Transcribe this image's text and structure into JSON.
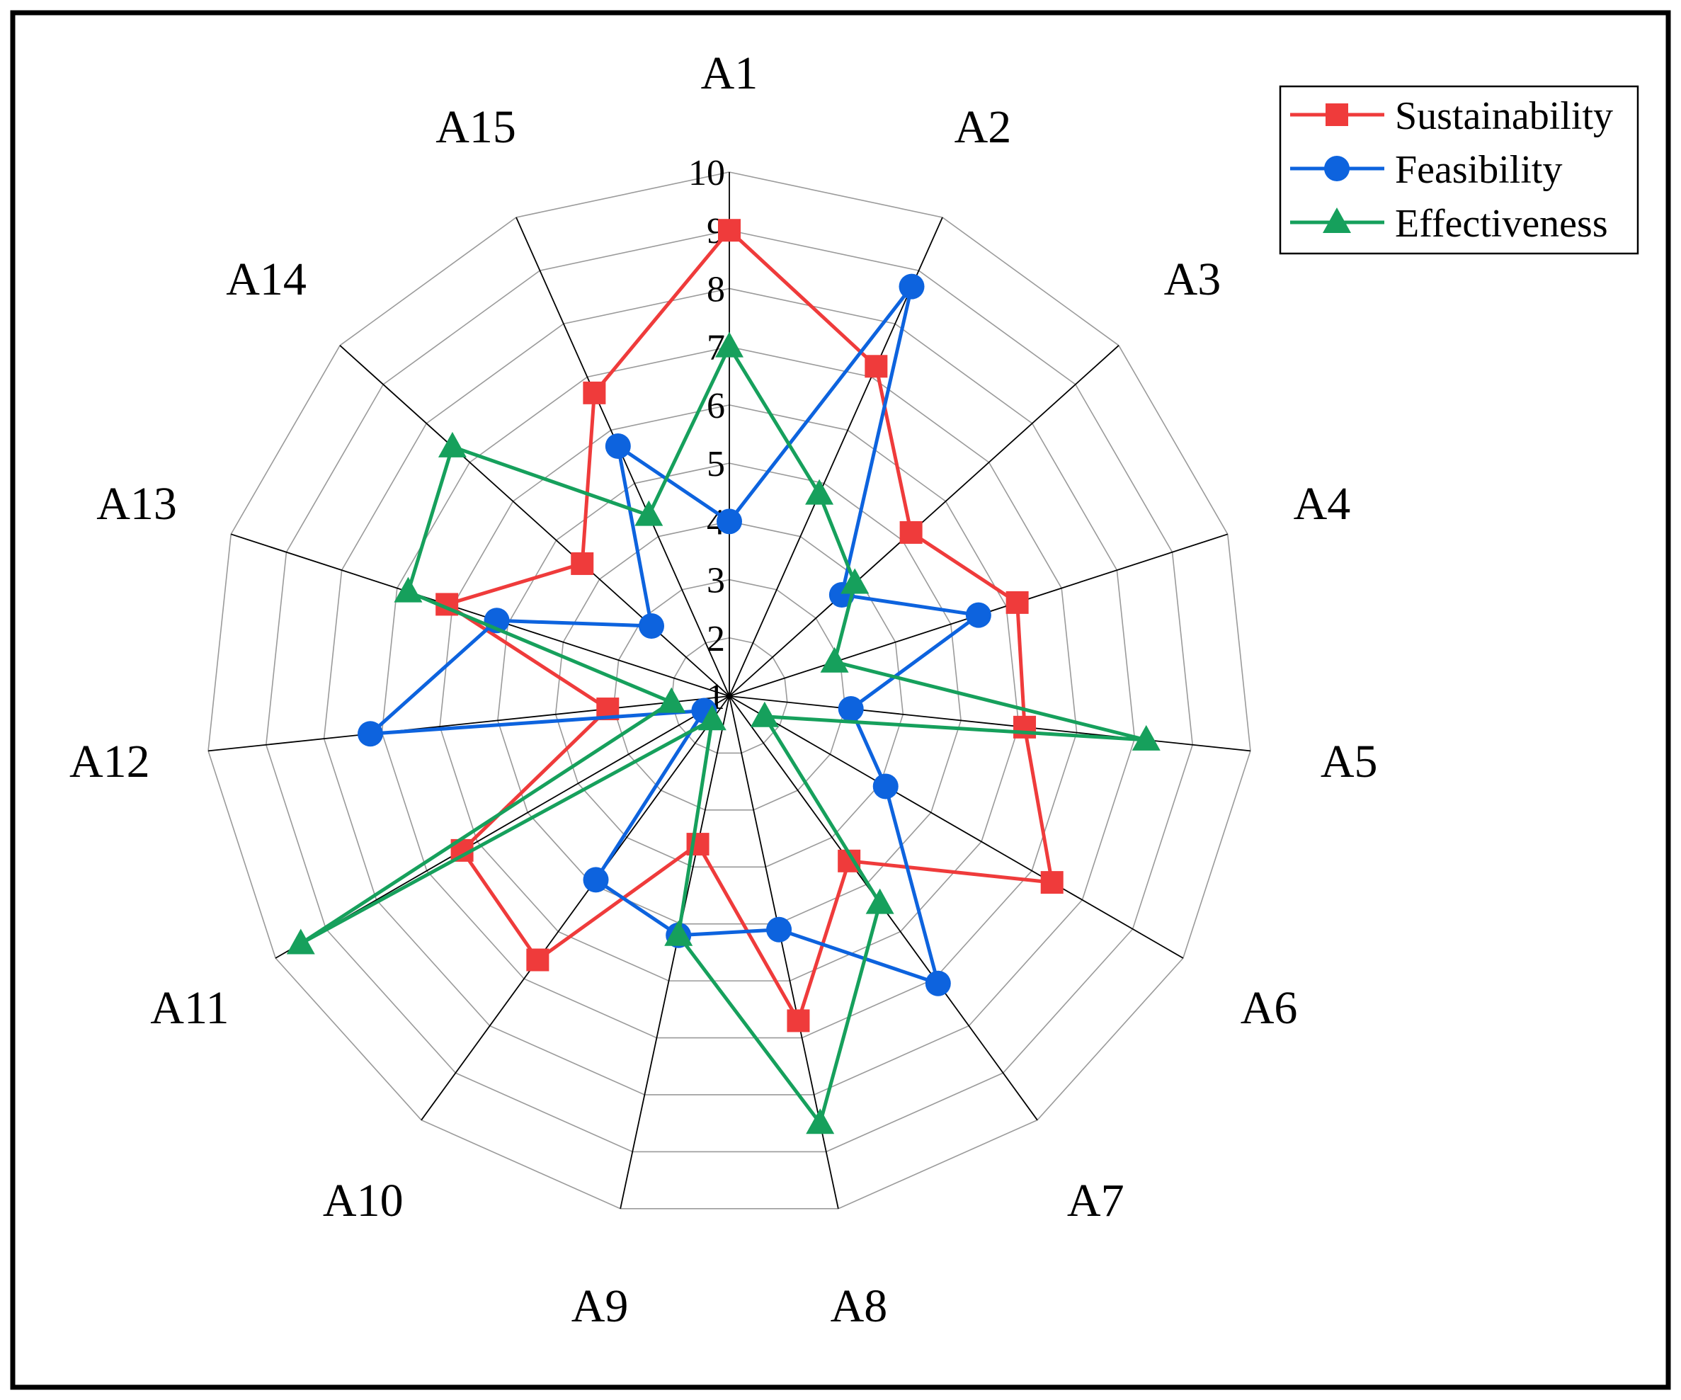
{
  "chart_data": {
    "type": "radar",
    "categories": [
      "A1",
      "A2",
      "A3",
      "A4",
      "A5",
      "A6",
      "A7",
      "A8",
      "A9",
      "A10",
      "A11",
      "A12",
      "A13",
      "A14",
      "A15"
    ],
    "r_range": [
      1,
      10
    ],
    "r_ticks": [
      1,
      2,
      3,
      4,
      5,
      6,
      7,
      8,
      9,
      10
    ],
    "legend_position": "top-right",
    "series": [
      {
        "name": "Sustainability",
        "color": "#ef3b3b",
        "marker": "square",
        "values": [
          9,
          7.2,
          5.2,
          6.2,
          6.1,
          7.4,
          4.5,
          6.7,
          3.6,
          6.6,
          6.3,
          3.1,
          6.1,
          4.4,
          6.7
        ]
      },
      {
        "name": "Feasibility",
        "color": "#0d63de",
        "marker": "circle",
        "values": [
          4,
          8.7,
          3.6,
          5.5,
          3.1,
          4.1,
          7.1,
          5.1,
          5.2,
          4.9,
          1.5,
          7.2,
          5.2,
          2.8,
          5.7
        ]
      },
      {
        "name": "Effectiveness",
        "color": "#16a05c",
        "marker": "triangle",
        "values": [
          7,
          4.8,
          3.9,
          2.9,
          8.2,
          1.7,
          5.4,
          8.5,
          5.2,
          1.5,
          9.5,
          2.0,
          6.8,
          7.4,
          4.4
        ]
      }
    ]
  }
}
